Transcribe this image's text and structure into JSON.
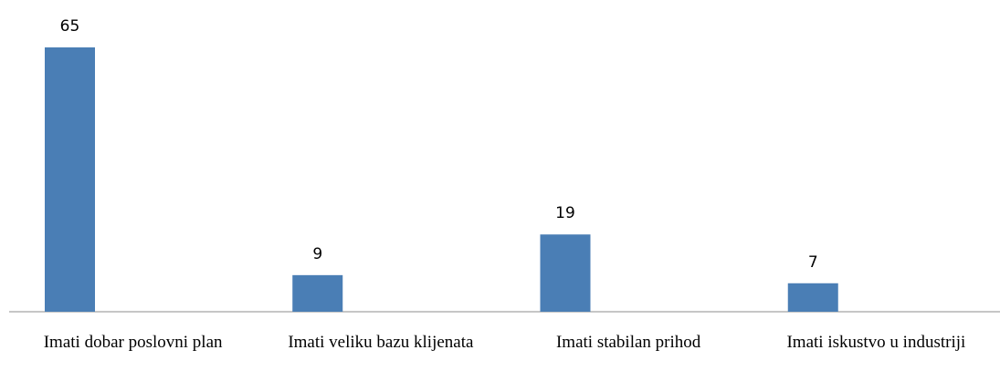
{
  "chart_data": {
    "type": "bar",
    "categories": [
      "Imati dobar poslovni plan",
      "Imati veliku bazu klijenata",
      "Imati stabilan prihod",
      "Imati iskustvo u industriji"
    ],
    "values": [
      65,
      9,
      19,
      7
    ],
    "color": "#4a7eb5"
  }
}
